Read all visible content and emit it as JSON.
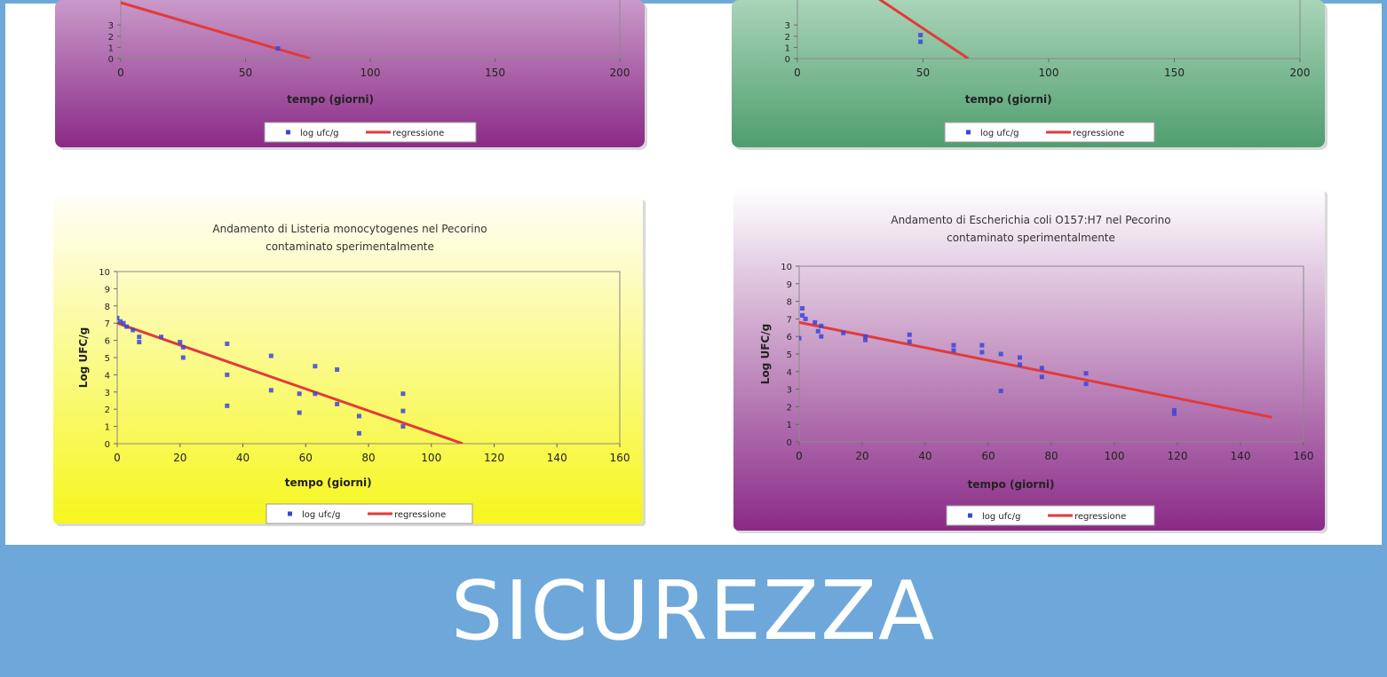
{
  "banner": {
    "title": "SICUREZZA"
  },
  "chart_data": [
    {
      "type": "scatter",
      "title": "",
      "xlabel": "tempo (giorni)",
      "ylabel": "",
      "xlim": [
        0,
        200
      ],
      "xticks": [
        "0",
        "50",
        "100",
        "150",
        "200"
      ],
      "ylim": [
        0,
        10
      ],
      "yticks": [
        "0",
        "1",
        "2",
        "3"
      ],
      "legend": "bottom",
      "grid": false,
      "background": [
        "#c99ac9",
        "#8a2a87"
      ],
      "series": [
        {
          "name": "log ufc/g",
          "kind": "points",
          "color": "#3b45d9",
          "points": [
            [
              63,
              0.9
            ]
          ]
        },
        {
          "name": "regressione",
          "kind": "line",
          "color": "#e23a3a",
          "points": [
            [
              0,
              5.0
            ],
            [
              76,
              0
            ]
          ]
        }
      ]
    },
    {
      "type": "scatter",
      "title": "",
      "xlabel": "tempo (giorni)",
      "ylabel": "",
      "xlim": [
        0,
        200
      ],
      "xticks": [
        "0",
        "50",
        "100",
        "150",
        "200"
      ],
      "ylim": [
        0,
        10
      ],
      "yticks": [
        "0",
        "1",
        "2",
        "3"
      ],
      "legend": "bottom",
      "grid": false,
      "background": [
        "#a9d4b8",
        "#4f9e6e"
      ],
      "series": [
        {
          "name": "log ufc/g",
          "kind": "points",
          "color": "#3b45d9",
          "points": [
            [
              49,
              1.5
            ],
            [
              49,
              2.1
            ]
          ]
        },
        {
          "name": "regressione",
          "kind": "line",
          "color": "#e23a3a",
          "points": [
            [
              0,
              10.2
            ],
            [
              68,
              0
            ]
          ]
        }
      ]
    },
    {
      "type": "scatter",
      "title": "Andamento di Listeria monocytogenes nel Pecorino contaminato sperimentalmente",
      "xlabel": "tempo (giorni)",
      "ylabel": "Log UFC/g",
      "xlim": [
        0,
        160
      ],
      "xticks": [
        "0",
        "20",
        "40",
        "60",
        "80",
        "100",
        "120",
        "140",
        "160"
      ],
      "ylim": [
        0,
        10
      ],
      "yticks": [
        "0",
        "1",
        "2",
        "3",
        "4",
        "5",
        "6",
        "7",
        "8",
        "9",
        "10"
      ],
      "legend": "bottom",
      "grid": false,
      "background": [
        "#fffef7",
        "#f6f61e"
      ],
      "series": [
        {
          "name": "log ufc/g",
          "kind": "points",
          "color": "#3b45d9",
          "points": [
            [
              0,
              7.3
            ],
            [
              1,
              7.1
            ],
            [
              2,
              7.0
            ],
            [
              3,
              6.8
            ],
            [
              5,
              6.6
            ],
            [
              7,
              6.2
            ],
            [
              7,
              5.9
            ],
            [
              14,
              6.2
            ],
            [
              20,
              5.9
            ],
            [
              21,
              5.6
            ],
            [
              21,
              5.0
            ],
            [
              35,
              5.8
            ],
            [
              35,
              4.0
            ],
            [
              35,
              2.2
            ],
            [
              49,
              5.1
            ],
            [
              49,
              3.1
            ],
            [
              58,
              2.9
            ],
            [
              58,
              1.8
            ],
            [
              63,
              4.5
            ],
            [
              63,
              2.9
            ],
            [
              70,
              4.3
            ],
            [
              70,
              2.3
            ],
            [
              77,
              1.6
            ],
            [
              77,
              0.6
            ],
            [
              91,
              2.9
            ],
            [
              91,
              1.9
            ],
            [
              91,
              1.0
            ]
          ]
        },
        {
          "name": "regressione",
          "kind": "line",
          "color": "#e23a3a",
          "points": [
            [
              0,
              7.0
            ],
            [
              110,
              0
            ]
          ]
        }
      ]
    },
    {
      "type": "scatter",
      "title": "Andamento di Escherichia coli O157:H7 nel Pecorino contaminato sperimentalmente",
      "xlabel": "tempo (giorni)",
      "ylabel": "Log UFC/g",
      "xlim": [
        0,
        160
      ],
      "xticks": [
        "0",
        "20",
        "40",
        "60",
        "80",
        "100",
        "120",
        "140",
        "160"
      ],
      "ylim": [
        0,
        10
      ],
      "yticks": [
        "0",
        "1",
        "2",
        "3",
        "4",
        "5",
        "6",
        "7",
        "8",
        "9",
        "10"
      ],
      "legend": "bottom",
      "grid": false,
      "background": [
        "#ffffff",
        "#8a2a87"
      ],
      "series": [
        {
          "name": "log ufc/g",
          "kind": "points",
          "color": "#3b45d9",
          "points": [
            [
              0,
              5.9
            ],
            [
              1,
              7.6
            ],
            [
              1,
              7.2
            ],
            [
              2,
              7.0
            ],
            [
              5,
              6.8
            ],
            [
              6,
              6.3
            ],
            [
              7,
              6.0
            ],
            [
              7,
              6.6
            ],
            [
              14,
              6.2
            ],
            [
              21,
              6.0
            ],
            [
              21,
              5.8
            ],
            [
              35,
              6.1
            ],
            [
              35,
              5.7
            ],
            [
              49,
              5.5
            ],
            [
              49,
              5.2
            ],
            [
              58,
              5.5
            ],
            [
              58,
              5.1
            ],
            [
              64,
              5.0
            ],
            [
              64,
              2.9
            ],
            [
              70,
              4.8
            ],
            [
              70,
              4.4
            ],
            [
              77,
              4.2
            ],
            [
              77,
              3.7
            ],
            [
              91,
              3.9
            ],
            [
              91,
              3.3
            ],
            [
              119,
              1.8
            ],
            [
              119,
              1.6
            ]
          ]
        },
        {
          "name": "regressione",
          "kind": "line",
          "color": "#e23a3a",
          "points": [
            [
              0,
              6.8
            ],
            [
              150,
              1.4
            ]
          ]
        }
      ]
    }
  ]
}
